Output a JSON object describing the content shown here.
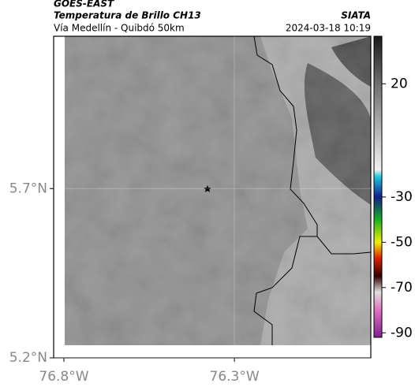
{
  "header": {
    "source": "GOES-EAST",
    "title": "Temperatura de Brillo CH13",
    "org": "SIATA",
    "subtitle": "Vía Medellín - Quibdó 50km",
    "datetime": "2024-03-18 10:19"
  },
  "map": {
    "xlim": [
      -76.83,
      -75.9
    ],
    "ylim": [
      5.2,
      6.15
    ],
    "xticks": [
      {
        "value": -76.8,
        "label": "76.8°W"
      },
      {
        "value": -76.3,
        "label": "76.3°W"
      }
    ],
    "yticks": [
      {
        "value": 5.7,
        "label": "5.7°N"
      },
      {
        "value": 5.2,
        "label": "5.2°N"
      }
    ],
    "grid": true
  },
  "colorbar": {
    "clim": [
      -92,
      41
    ],
    "ticks": [
      20,
      -30,
      -50,
      -70,
      -90
    ],
    "stops": [
      {
        "value": 41,
        "color": "#1a1a1a"
      },
      {
        "value": 20,
        "color": "#6e6e6e"
      },
      {
        "value": -18,
        "color": "#f2f2f2"
      },
      {
        "value": -21,
        "color": "#20c8e0"
      },
      {
        "value": -30,
        "color": "#101c8c"
      },
      {
        "value": -40,
        "color": "#18b020"
      },
      {
        "value": -50,
        "color": "#f0f000"
      },
      {
        "value": -57,
        "color": "#e02000"
      },
      {
        "value": -65,
        "color": "#300000"
      },
      {
        "value": -72,
        "color": "#e0e0e0"
      },
      {
        "value": -80,
        "color": "#e070c0"
      },
      {
        "value": -92,
        "color": "#802090"
      }
    ]
  }
}
